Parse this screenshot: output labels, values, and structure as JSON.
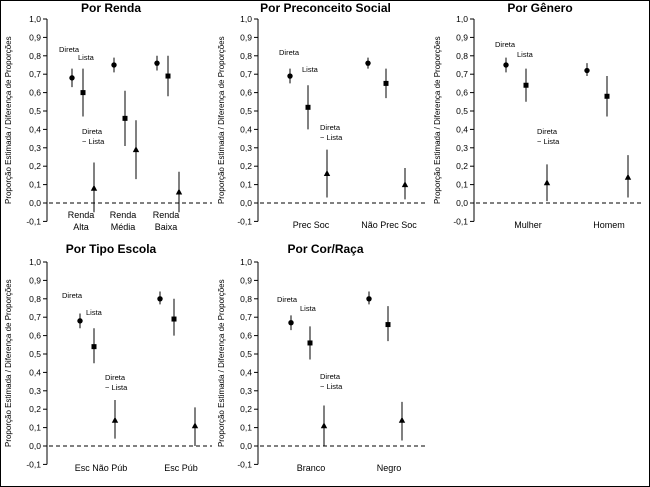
{
  "chart_data": [
    {
      "type": "scatter",
      "title": "Por Renda",
      "ylabel": "Proporção Estimada / Diferença de Proporções",
      "ylim": [
        -0.1,
        1.0
      ],
      "yticks": [
        "-0,1",
        "0,0",
        "0,1",
        "0,2",
        "0,3",
        "0,4",
        "0,5",
        "0,6",
        "0,7",
        "0,8",
        "0,9",
        "1,0"
      ],
      "categories": [
        [
          "Renda",
          "Alta"
        ],
        [
          "Renda",
          "Média"
        ],
        [
          "Renda",
          "Baixa"
        ]
      ],
      "series": [
        {
          "name": "Direta",
          "marker": "circle",
          "values": [
            0.68,
            0.75,
            0.76
          ],
          "lo": [
            0.63,
            0.71,
            0.72
          ],
          "hi": [
            0.73,
            0.79,
            0.8
          ]
        },
        {
          "name": "Lista",
          "marker": "square",
          "values": [
            0.6,
            0.46,
            0.69
          ],
          "lo": [
            0.47,
            0.31,
            0.58
          ],
          "hi": [
            0.73,
            0.61,
            0.8
          ]
        },
        {
          "name": "Direta − Lista",
          "marker": "triangle",
          "values": [
            0.08,
            0.29,
            0.06
          ],
          "lo": [
            -0.05,
            0.13,
            -0.05
          ],
          "hi": [
            0.22,
            0.45,
            0.17
          ]
        }
      ],
      "annotations": [
        {
          "text": "Direta"
        },
        {
          "text": "Lista"
        },
        {
          "text": [
            "Direta",
            "− Lista"
          ]
        }
      ]
    },
    {
      "type": "scatter",
      "title": "Por Preconceito Social",
      "ylabel": "Proporção Estimada / Diferença de Proporções",
      "ylim": [
        -0.1,
        1.0
      ],
      "yticks": [
        "-0,1",
        "0,0",
        "0,1",
        "0,2",
        "0,3",
        "0,4",
        "0,5",
        "0,6",
        "0,7",
        "0,8",
        "0,9",
        "1,0"
      ],
      "categories": [
        [
          "Prec Soc"
        ],
        [
          "Não Prec Soc"
        ]
      ],
      "series": [
        {
          "name": "Direta",
          "marker": "circle",
          "values": [
            0.69,
            0.76
          ],
          "lo": [
            0.65,
            0.73
          ],
          "hi": [
            0.73,
            0.79
          ]
        },
        {
          "name": "Lista",
          "marker": "square",
          "values": [
            0.52,
            0.65
          ],
          "lo": [
            0.4,
            0.57
          ],
          "hi": [
            0.64,
            0.73
          ]
        },
        {
          "name": "Direta − Lista",
          "marker": "triangle",
          "values": [
            0.16,
            0.1
          ],
          "lo": [
            0.03,
            0.02
          ],
          "hi": [
            0.29,
            0.19
          ]
        }
      ],
      "annotations": [
        {
          "text": "Direta"
        },
        {
          "text": "Lista"
        },
        {
          "text": [
            "Direta",
            "− Lista"
          ]
        }
      ]
    },
    {
      "type": "scatter",
      "title": "Por Gênero",
      "ylabel": "Proporção Estimada / Diferença de Proporções",
      "ylim": [
        -0.1,
        1.0
      ],
      "yticks": [
        "-0,1",
        "0,0",
        "0,1",
        "0,2",
        "0,3",
        "0,4",
        "0,5",
        "0,6",
        "0,7",
        "0,8",
        "0,9",
        "1,0"
      ],
      "categories": [
        [
          "Mulher"
        ],
        [
          "Homem"
        ]
      ],
      "series": [
        {
          "name": "Direta",
          "marker": "circle",
          "values": [
            0.75,
            0.72
          ],
          "lo": [
            0.71,
            0.69
          ],
          "hi": [
            0.79,
            0.76
          ]
        },
        {
          "name": "Lista",
          "marker": "square",
          "values": [
            0.64,
            0.58
          ],
          "lo": [
            0.55,
            0.47
          ],
          "hi": [
            0.73,
            0.69
          ]
        },
        {
          "name": "Direta − Lista",
          "marker": "triangle",
          "values": [
            0.11,
            0.14
          ],
          "lo": [
            0.01,
            0.03
          ],
          "hi": [
            0.21,
            0.26
          ]
        }
      ],
      "annotations": [
        {
          "text": "Direta"
        },
        {
          "text": "Lista"
        },
        {
          "text": [
            "Direta",
            "− Lista"
          ]
        }
      ]
    },
    {
      "type": "scatter",
      "title": "Por Tipo Escola",
      "ylabel": "Proporção Estimada / Diferença de Proporções",
      "ylim": [
        -0.1,
        1.0
      ],
      "yticks": [
        "-0,1",
        "0,0",
        "0,1",
        "0,2",
        "0,3",
        "0,4",
        "0,5",
        "0,6",
        "0,7",
        "0,8",
        "0,9",
        "1,0"
      ],
      "categories": [
        [
          "Esc Não Púb"
        ],
        [
          "Esc Púb"
        ]
      ],
      "series": [
        {
          "name": "Direta",
          "marker": "circle",
          "values": [
            0.68,
            0.8
          ],
          "lo": [
            0.64,
            0.77
          ],
          "hi": [
            0.72,
            0.84
          ]
        },
        {
          "name": "Lista",
          "marker": "square",
          "values": [
            0.54,
            0.69
          ],
          "lo": [
            0.45,
            0.6
          ],
          "hi": [
            0.64,
            0.8
          ]
        },
        {
          "name": "Direta − Lista",
          "marker": "triangle",
          "values": [
            0.14,
            0.11
          ],
          "lo": [
            0.04,
            0.0
          ],
          "hi": [
            0.25,
            0.21
          ]
        }
      ],
      "annotations": [
        {
          "text": "Direta"
        },
        {
          "text": "Lista"
        },
        {
          "text": [
            "Direta",
            "− Lista"
          ]
        }
      ]
    },
    {
      "type": "scatter",
      "title": "Por Cor/Raça",
      "ylabel": "Proporção Estimada / Diferença de Proporções",
      "ylim": [
        -0.1,
        1.0
      ],
      "yticks": [
        "-0,1",
        "0,0",
        "0,1",
        "0,2",
        "0,3",
        "0,4",
        "0,5",
        "0,6",
        "0,7",
        "0,8",
        "0,9",
        "1,0"
      ],
      "categories": [
        [
          "Branco"
        ],
        [
          "Negro"
        ]
      ],
      "series": [
        {
          "name": "Direta",
          "marker": "circle",
          "values": [
            0.67,
            0.8
          ],
          "lo": [
            0.63,
            0.77
          ],
          "hi": [
            0.71,
            0.84
          ]
        },
        {
          "name": "Lista",
          "marker": "square",
          "values": [
            0.56,
            0.66
          ],
          "lo": [
            0.47,
            0.57
          ],
          "hi": [
            0.65,
            0.76
          ]
        },
        {
          "name": "Direta − Lista",
          "marker": "triangle",
          "values": [
            0.11,
            0.14
          ],
          "lo": [
            0.0,
            0.03
          ],
          "hi": [
            0.22,
            0.24
          ]
        }
      ],
      "annotations": [
        {
          "text": "Direta"
        },
        {
          "text": "Lista"
        },
        {
          "text": [
            "Direta",
            "− Lista"
          ]
        }
      ]
    }
  ]
}
